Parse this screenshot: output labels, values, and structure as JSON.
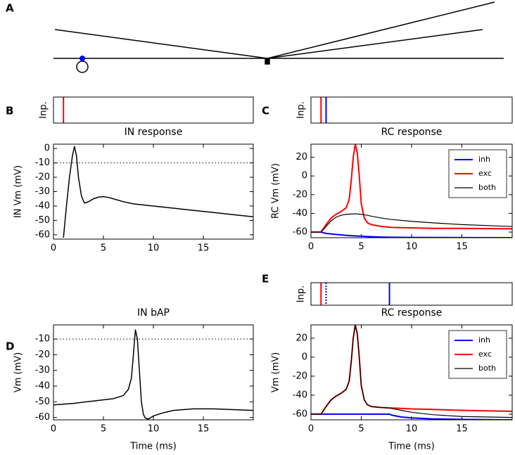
{
  "panel_labels": [
    "A",
    "B",
    "C",
    "D",
    "E"
  ],
  "chart_data": [
    {
      "type": "raster",
      "ylabel": "Inp.",
      "xlim": [
        0,
        20
      ],
      "events": [
        {
          "x": 1,
          "color": "#ff0000",
          "style": "solid"
        }
      ]
    },
    {
      "type": "line",
      "title": "IN response",
      "ylabel": "IN Vm (mV)",
      "xlim": [
        0,
        20
      ],
      "xticks": [
        0,
        5,
        10,
        15
      ],
      "ylim": [
        -63,
        3
      ],
      "yticks": [
        0,
        -10,
        -20,
        -30,
        -40,
        -50,
        -60
      ],
      "reference_line": -10,
      "reference_style": "dotted",
      "color": "#000000",
      "x": [
        1.0,
        1.3,
        1.6,
        1.9,
        2.1,
        2.3,
        2.5,
        2.8,
        3.1,
        3.5,
        4,
        4.5,
        5,
        5.5,
        6,
        7,
        8,
        10,
        12,
        14,
        16,
        18,
        20
      ],
      "values": [
        -62,
        -40,
        -20,
        -5,
        1.5,
        -5,
        -20,
        -33,
        -38,
        -37,
        -35,
        -33.8,
        -33.5,
        -34,
        -35,
        -37,
        -38.5,
        -40,
        -41.5,
        -43,
        -44.5,
        -46,
        -47.5
      ]
    },
    {
      "type": "raster",
      "ylabel": "Inp.",
      "xlim": [
        0,
        20
      ],
      "events": [
        {
          "x": 1,
          "color": "#ff0000",
          "style": "solid"
        },
        {
          "x": 1.5,
          "color": "#0000ff",
          "style": "solid"
        }
      ]
    },
    {
      "type": "line",
      "title": "RC response",
      "ylabel": "RC Vm (mV)",
      "xlim": [
        0,
        20
      ],
      "xticks": [
        0,
        5,
        10,
        15
      ],
      "ylim": [
        -66,
        34
      ],
      "yticks": [
        20,
        0,
        -20,
        -40,
        -60
      ],
      "legend": "upper right",
      "x": [
        0,
        1,
        1.5,
        2,
        2.5,
        3,
        3.5,
        3.8,
        4,
        4.2,
        4.4,
        4.6,
        4.8,
        5,
        5.3,
        5.6,
        6,
        7,
        8,
        10,
        12,
        15,
        20
      ],
      "series": [
        {
          "name": "inh",
          "color": "#0000ff",
          "width": 2,
          "values": [
            -60,
            -60,
            -61.5,
            -62,
            -62.5,
            -63,
            -63.5,
            -63.7,
            -63.8,
            -64,
            -64,
            -64.2,
            -64.3,
            -64.4,
            -64.6,
            -64.8,
            -65,
            -65.3,
            -65.5,
            -65.7,
            -65.8,
            -65.9,
            -66
          ]
        },
        {
          "name": "exc",
          "color": "#ff0000",
          "width": 2,
          "values": [
            -60,
            -60,
            -52,
            -45,
            -41,
            -38,
            -34,
            -25,
            -5,
            20,
            34,
            25,
            0,
            -30,
            -45,
            -50,
            -52,
            -54,
            -55,
            -55.5,
            -56,
            -56,
            -56.5
          ]
        },
        {
          "name": "both",
          "color": "#000000",
          "width": 1.2,
          "values": [
            -60,
            -60,
            -54,
            -48,
            -44,
            -42,
            -41,
            -40.8,
            -40.7,
            -40.6,
            -40.5,
            -40.6,
            -40.8,
            -41,
            -41.5,
            -42,
            -43,
            -45,
            -46.5,
            -48.5,
            -50,
            -52,
            -54
          ]
        }
      ]
    },
    {
      "type": "line",
      "title": "IN bAP",
      "ylabel": "Vm (mV)",
      "xlabel": "Time (ms)",
      "xlim": [
        0,
        20
      ],
      "xticks": [
        0,
        5,
        10,
        15
      ],
      "ylim": [
        -61.5,
        -1
      ],
      "yticks": [
        -10,
        -20,
        -30,
        -40,
        -50,
        -60
      ],
      "reference_line": -10,
      "reference_style": "dotted",
      "color": "#000000",
      "x": [
        0,
        2,
        4,
        6,
        7,
        7.5,
        7.8,
        8,
        8.2,
        8.4,
        8.6,
        8.8,
        9,
        9.2,
        9.5,
        10,
        11,
        12,
        14,
        16,
        18,
        20
      ],
      "values": [
        -52,
        -51,
        -49.5,
        -48,
        -46,
        -42,
        -35,
        -20,
        -4,
        -10,
        -30,
        -50,
        -58,
        -60.5,
        -61,
        -59,
        -57,
        -55.5,
        -54.5,
        -54.5,
        -55,
        -55.5
      ]
    },
    {
      "type": "raster",
      "ylabel": "Inp.",
      "xlim": [
        0,
        20
      ],
      "events": [
        {
          "x": 1,
          "color": "#ff0000",
          "style": "solid"
        },
        {
          "x": 1.5,
          "color": "#0000ff",
          "style": "dotted"
        },
        {
          "x": 7.8,
          "color": "#0000ff",
          "style": "solid"
        }
      ]
    },
    {
      "type": "line",
      "title": "RC response",
      "ylabel": "Vm (mV)",
      "xlabel": "Time (ms)",
      "xlim": [
        0,
        20
      ],
      "xticks": [
        0,
        5,
        10,
        15
      ],
      "ylim": [
        -66,
        34
      ],
      "yticks": [
        20,
        0,
        -20,
        -40,
        -60
      ],
      "legend": "upper right",
      "x": [
        0,
        1,
        1.5,
        2,
        2.5,
        3,
        3.5,
        3.8,
        4,
        4.2,
        4.4,
        4.6,
        4.8,
        5,
        5.3,
        5.6,
        6,
        7,
        7.8,
        8,
        9,
        10,
        12,
        15,
        20
      ],
      "series": [
        {
          "name": "inh",
          "color": "#0000ff",
          "width": 2,
          "values": [
            -60,
            -60,
            -60,
            -60,
            -60,
            -60,
            -60,
            -60,
            -60,
            -60,
            -60,
            -60,
            -60,
            -60,
            -60,
            -60,
            -60,
            -60,
            -60,
            -61,
            -63,
            -64,
            -65,
            -65.5,
            -66
          ]
        },
        {
          "name": "exc",
          "color": "#ff0000",
          "width": 2,
          "values": [
            -60,
            -60,
            -52,
            -45,
            -41,
            -38,
            -34,
            -25,
            -5,
            20,
            34,
            25,
            0,
            -30,
            -45,
            -50,
            -52,
            -53,
            -53.5,
            -53.5,
            -54,
            -54.5,
            -55,
            -56,
            -57
          ]
        },
        {
          "name": "both",
          "color": "#000000",
          "width": 1.2,
          "values": [
            -60,
            -60,
            -52,
            -45,
            -41,
            -38,
            -34,
            -25,
            -5,
            20,
            34,
            25,
            0,
            -30,
            -45,
            -50,
            -52,
            -53,
            -53.5,
            -54,
            -56,
            -58,
            -60.5,
            -62.5,
            -63.5
          ]
        }
      ]
    }
  ]
}
